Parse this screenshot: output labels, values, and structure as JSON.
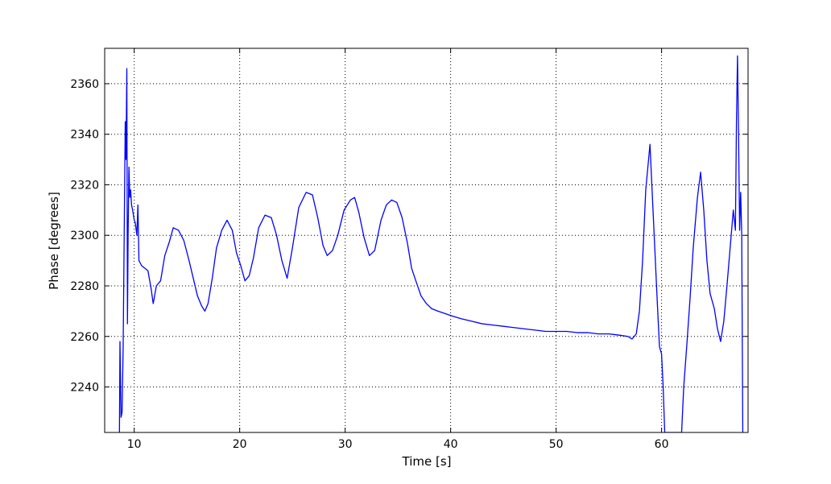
{
  "chart_data": {
    "type": "line",
    "title": "",
    "xlabel": "Time [s]",
    "ylabel": "Phase [degrees]",
    "xlim": [
      7.2,
      68.2
    ],
    "ylim": [
      2222,
      2374
    ],
    "x_ticks": [
      10,
      20,
      30,
      40,
      50,
      60
    ],
    "y_ticks": [
      2240,
      2260,
      2280,
      2300,
      2320,
      2340,
      2360
    ],
    "x_tick_labels": [
      "10",
      "20",
      "30",
      "40",
      "50",
      "60"
    ],
    "y_tick_labels": [
      "2240",
      "2260",
      "2280",
      "2300",
      "2320",
      "2340",
      "2360"
    ],
    "grid": true,
    "legend": "none",
    "series_color": "#0000ff",
    "series": [
      {
        "points": [
          [
            8.6,
            2222
          ],
          [
            8.65,
            2258
          ],
          [
            8.75,
            2228
          ],
          [
            8.85,
            2230
          ],
          [
            8.95,
            2255
          ],
          [
            9.05,
            2300
          ],
          [
            9.15,
            2345
          ],
          [
            9.22,
            2330
          ],
          [
            9.3,
            2366
          ],
          [
            9.36,
            2265
          ],
          [
            9.42,
            2300
          ],
          [
            9.5,
            2327
          ],
          [
            9.58,
            2315
          ],
          [
            9.66,
            2318
          ],
          [
            9.75,
            2312
          ],
          [
            9.85,
            2310
          ],
          [
            10.0,
            2306
          ],
          [
            10.1,
            2305
          ],
          [
            10.25,
            2300
          ],
          [
            10.35,
            2312
          ],
          [
            10.45,
            2290
          ],
          [
            10.7,
            2288
          ],
          [
            11.0,
            2287
          ],
          [
            11.3,
            2286
          ],
          [
            11.6,
            2279
          ],
          [
            11.8,
            2273
          ],
          [
            12.1,
            2280
          ],
          [
            12.5,
            2282
          ],
          [
            12.9,
            2292
          ],
          [
            13.3,
            2297
          ],
          [
            13.7,
            2303
          ],
          [
            14.2,
            2302
          ],
          [
            14.7,
            2298
          ],
          [
            15.2,
            2290
          ],
          [
            15.6,
            2283
          ],
          [
            16.0,
            2276
          ],
          [
            16.4,
            2272
          ],
          [
            16.7,
            2270
          ],
          [
            17.0,
            2273
          ],
          [
            17.4,
            2283
          ],
          [
            17.8,
            2295
          ],
          [
            18.3,
            2302
          ],
          [
            18.8,
            2306
          ],
          [
            19.3,
            2302
          ],
          [
            19.7,
            2293
          ],
          [
            20.1,
            2288
          ],
          [
            20.5,
            2282
          ],
          [
            20.9,
            2284
          ],
          [
            21.3,
            2291
          ],
          [
            21.8,
            2303
          ],
          [
            22.4,
            2308
          ],
          [
            23.0,
            2307
          ],
          [
            23.5,
            2300
          ],
          [
            24.0,
            2290
          ],
          [
            24.5,
            2283
          ],
          [
            25.0,
            2295
          ],
          [
            25.6,
            2311
          ],
          [
            26.3,
            2317
          ],
          [
            26.9,
            2316
          ],
          [
            27.4,
            2307
          ],
          [
            27.9,
            2296
          ],
          [
            28.3,
            2292
          ],
          [
            28.8,
            2294
          ],
          [
            29.3,
            2300
          ],
          [
            29.9,
            2310
          ],
          [
            30.5,
            2314
          ],
          [
            30.9,
            2315
          ],
          [
            31.3,
            2309
          ],
          [
            31.8,
            2299
          ],
          [
            32.3,
            2292
          ],
          [
            32.8,
            2294
          ],
          [
            33.4,
            2306
          ],
          [
            33.9,
            2312
          ],
          [
            34.4,
            2314
          ],
          [
            34.9,
            2313
          ],
          [
            35.4,
            2307
          ],
          [
            35.9,
            2297
          ],
          [
            36.3,
            2287
          ],
          [
            36.7,
            2282
          ],
          [
            37.2,
            2276
          ],
          [
            37.7,
            2273
          ],
          [
            38.2,
            2271
          ],
          [
            38.8,
            2270
          ],
          [
            39.5,
            2269
          ],
          [
            40.2,
            2268
          ],
          [
            41.0,
            2267
          ],
          [
            42.0,
            2266
          ],
          [
            43.0,
            2265
          ],
          [
            44.0,
            2264.5
          ],
          [
            45.0,
            2264
          ],
          [
            46.0,
            2263.5
          ],
          [
            47.0,
            2263
          ],
          [
            48.0,
            2262.5
          ],
          [
            49.0,
            2262
          ],
          [
            50.0,
            2262
          ],
          [
            51.0,
            2262
          ],
          [
            52.0,
            2261.5
          ],
          [
            53.0,
            2261.5
          ],
          [
            54.0,
            2261
          ],
          [
            55.0,
            2261
          ],
          [
            56.0,
            2260.5
          ],
          [
            56.8,
            2260
          ],
          [
            57.2,
            2259
          ],
          [
            57.6,
            2261
          ],
          [
            57.9,
            2270
          ],
          [
            58.2,
            2290
          ],
          [
            58.5,
            2318
          ],
          [
            58.9,
            2336
          ],
          [
            59.3,
            2300
          ],
          [
            59.6,
            2273
          ],
          [
            59.8,
            2256
          ],
          [
            60.0,
            2253
          ],
          [
            60.15,
            2240
          ],
          [
            60.3,
            2222
          ],
          [
            61.9,
            2222
          ],
          [
            62.1,
            2240
          ],
          [
            62.4,
            2257
          ],
          [
            62.7,
            2275
          ],
          [
            63.0,
            2295
          ],
          [
            63.4,
            2315
          ],
          [
            63.7,
            2325
          ],
          [
            64.0,
            2310
          ],
          [
            64.3,
            2290
          ],
          [
            64.6,
            2277
          ],
          [
            65.0,
            2271
          ],
          [
            65.3,
            2263
          ],
          [
            65.6,
            2258
          ],
          [
            65.9,
            2266
          ],
          [
            66.2,
            2280
          ],
          [
            66.5,
            2295
          ],
          [
            66.8,
            2310
          ],
          [
            67.0,
            2302
          ],
          [
            67.1,
            2345
          ],
          [
            67.2,
            2371
          ],
          [
            67.3,
            2340
          ],
          [
            67.4,
            2302
          ],
          [
            67.5,
            2317
          ],
          [
            67.6,
            2300
          ],
          [
            67.7,
            2222
          ]
        ]
      }
    ]
  }
}
